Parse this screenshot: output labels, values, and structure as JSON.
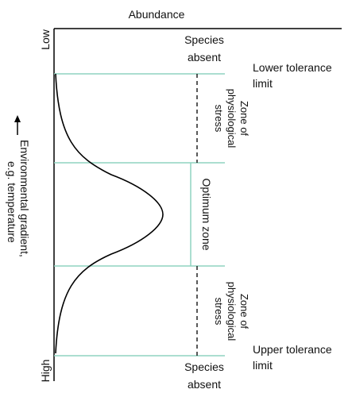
{
  "diagram": {
    "title": "Abundance",
    "axis_top_label": "Low",
    "axis_bottom_label": "High",
    "y_axis_label_line1": "Environmental gradient,",
    "y_axis_label_line2": "e.g. temperature",
    "zones": {
      "top_absent": [
        "Species",
        "absent"
      ],
      "upper_stress": [
        "Zone of",
        "physiological",
        "stress"
      ],
      "optimum": "Optimum zone",
      "lower_stress": [
        "Zone of",
        "physiological",
        "stress"
      ],
      "bottom_absent": [
        "Species",
        "absent"
      ]
    },
    "limits": {
      "lower": [
        "Lower tolerance",
        "limit"
      ],
      "upper": [
        "Upper tolerance",
        "limit"
      ]
    },
    "colors": {
      "boundary_line": "#8fd3c0",
      "axis": "#000000",
      "curve": "#000000"
    }
  }
}
